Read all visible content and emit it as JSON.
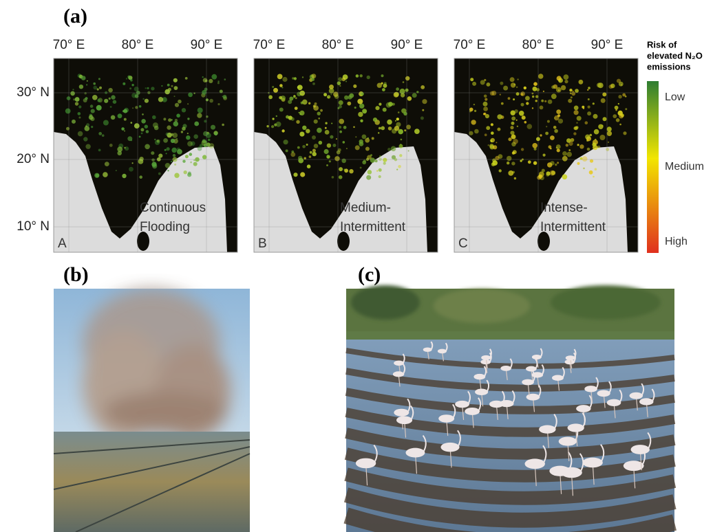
{
  "panel_a": {
    "label": "(a)",
    "longitude_labels": [
      "70° E",
      "80° E",
      "90° E"
    ],
    "latitude_labels": [
      "30° N",
      "20° N",
      "10° N"
    ],
    "maps": [
      {
        "letter": "A",
        "caption": [
          "Continuous",
          "Flooding"
        ]
      },
      {
        "letter": "B",
        "caption": [
          "Medium-",
          "Intermittent"
        ]
      },
      {
        "letter": "C",
        "caption": [
          "Intense-",
          "Intermittent"
        ]
      }
    ],
    "legend": {
      "title": [
        "Risk of",
        "elevated N₂O",
        "emissions"
      ],
      "levels": [
        "Low",
        "Medium",
        "High"
      ]
    }
  },
  "panel_b": {
    "label": "(b)"
  },
  "panel_c": {
    "label": "(c)"
  }
}
